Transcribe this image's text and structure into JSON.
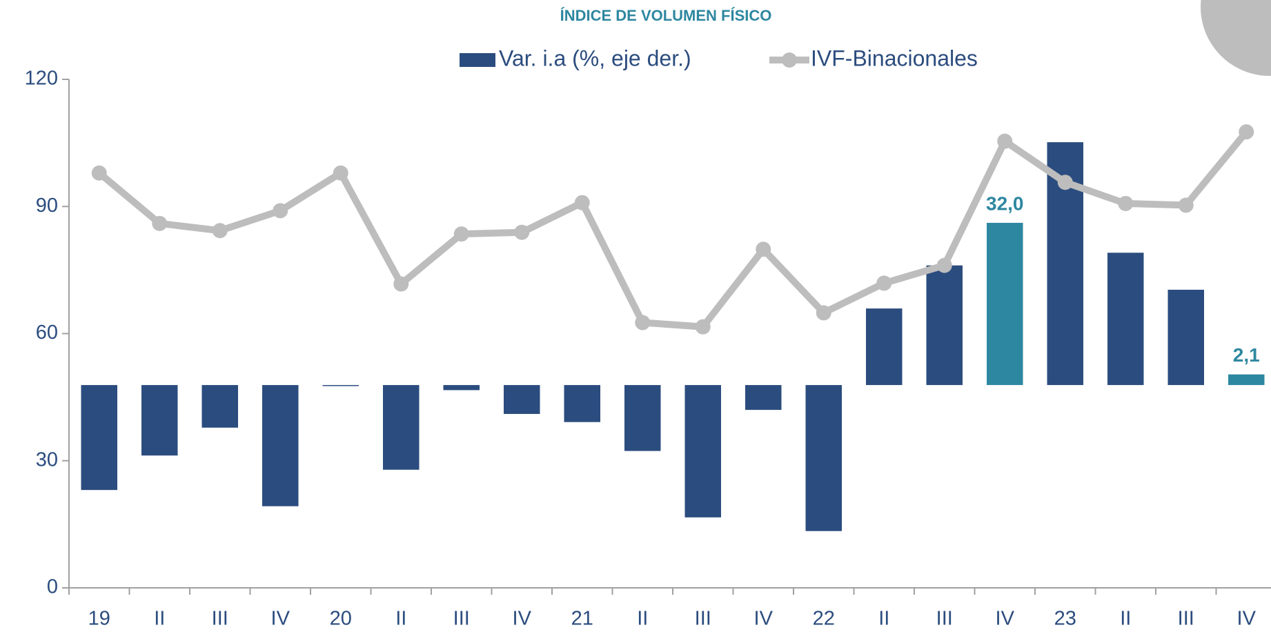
{
  "chart_data": {
    "type": "bar_line",
    "title": "ÍNDICE DE VOLUMEN FÍSICO",
    "categories": [
      "19",
      "II",
      "III",
      "IV",
      "20",
      "II",
      "III",
      "IV",
      "21",
      "II",
      "III",
      "IV",
      "22",
      "II",
      "III",
      "IV",
      "23",
      "II",
      "III",
      "IV"
    ],
    "series": [
      {
        "name": "Var. i.a (%, eje der.)",
        "type": "bar",
        "axis": "y2",
        "color": "#2b4c7e",
        "colors": [
          "#2b4c7e",
          "#2b4c7e",
          "#2b4c7e",
          "#2b4c7e",
          "#2b4c7e",
          "#2b4c7e",
          "#2b4c7e",
          "#2b4c7e",
          "#2b4c7e",
          "#2b4c7e",
          "#2b4c7e",
          "#2b4c7e",
          "#2b4c7e",
          "#2b4c7e",
          "#2b4c7e",
          "#2e87a0",
          "#2b4c7e",
          "#2b4c7e",
          "#2b4c7e",
          "#2e87a0"
        ],
        "values": [
          -20.7,
          -13.9,
          -8.4,
          -23.9,
          -0.2,
          -16.7,
          -1.0,
          -5.7,
          -7.3,
          -13.0,
          -26.1,
          -4.9,
          -28.8,
          15.1,
          23.6,
          32.0,
          47.9,
          26.1,
          18.8,
          2.1
        ],
        "value_labels": [
          null,
          null,
          null,
          null,
          null,
          null,
          null,
          null,
          null,
          null,
          null,
          null,
          null,
          null,
          null,
          "32,0",
          null,
          null,
          null,
          "2,1"
        ]
      },
      {
        "name": "IVF-Binacionales",
        "type": "line",
        "axis": "y",
        "color": "#bdbdbd",
        "values": [
          97.9,
          86.0,
          84.3,
          89.0,
          97.9,
          71.7,
          83.5,
          83.9,
          90.9,
          62.6,
          61.6,
          79.9,
          64.9,
          71.9,
          76.1,
          105.4,
          95.7,
          90.7,
          90.3,
          107.6
        ]
      }
    ],
    "ylim": [
      0,
      120
    ],
    "yticks": [
      0,
      30,
      60,
      90,
      120
    ],
    "y2lim": [
      -40,
      60.3
    ],
    "grid": false
  }
}
